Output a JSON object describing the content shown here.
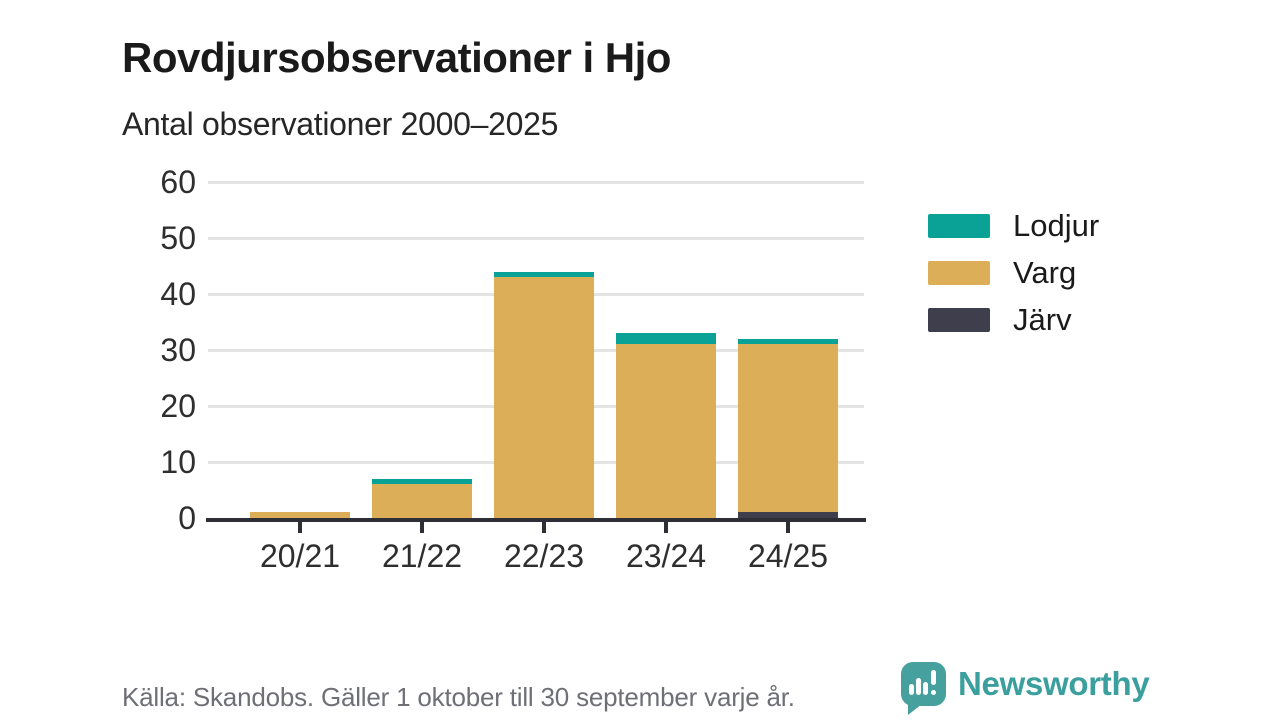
{
  "title": "Rovdjursobservationer i Hjo",
  "subtitle": "Antal observationer 2000–2025",
  "chart_data": {
    "type": "bar",
    "stacked": true,
    "title": "Rovdjursobservationer i Hjo",
    "subtitle": "Antal observationer 2000–2025",
    "categories": [
      "20/21",
      "21/22",
      "22/23",
      "23/24",
      "24/25"
    ],
    "series": [
      {
        "name": "Lodjur",
        "color": "#0aa296",
        "values": [
          0,
          1,
          1,
          2,
          1
        ]
      },
      {
        "name": "Varg",
        "color": "#dcae58",
        "values": [
          1,
          6,
          43,
          31,
          30
        ]
      },
      {
        "name": "Järv",
        "color": "#3f3e4d",
        "values": [
          0,
          0,
          0,
          0,
          1
        ]
      }
    ],
    "stack_order_bottom_to_top": [
      "Järv",
      "Varg",
      "Lodjur"
    ],
    "totals": [
      1,
      7,
      44,
      33,
      32
    ],
    "xlabel": "",
    "ylabel": "",
    "ylim": [
      0,
      60
    ],
    "yticks": [
      0,
      10,
      20,
      30,
      40,
      50,
      60
    ],
    "grid": true,
    "legend_position": "right"
  },
  "legend": {
    "items": [
      "Lodjur",
      "Varg",
      "Järv"
    ]
  },
  "footer": {
    "source": "Källa: Skandobs. Gäller 1 oktober till 30 september varje år."
  },
  "branding": {
    "name": "Newsworthy",
    "color": "#3a9f9d",
    "icon": "newsworthy-speech-bubble-bar-chart-icon"
  },
  "colors": {
    "axis_text": "#2e2e2e",
    "gridline": "#e4e4e4",
    "axis_line": "#2e2e36",
    "source_text": "#6e7076",
    "background": "#ffffff"
  }
}
